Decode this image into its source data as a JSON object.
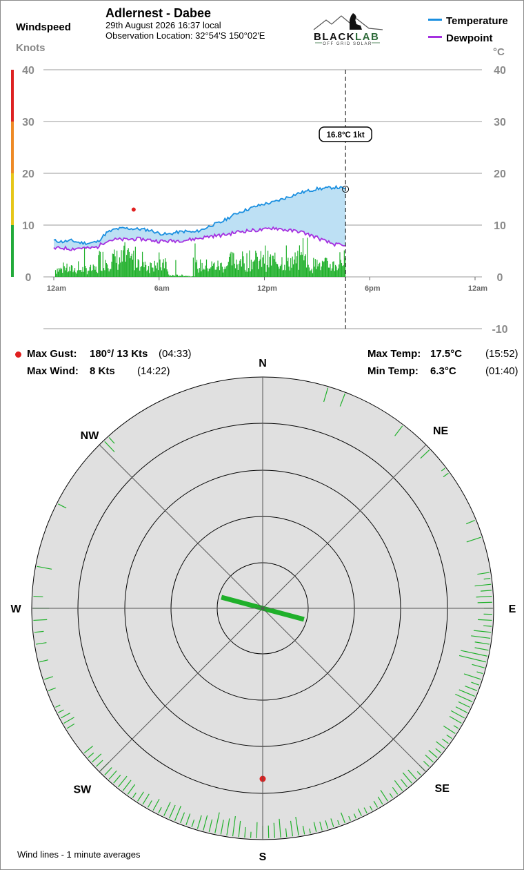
{
  "header": {
    "title": "Adlernest - Dabee",
    "datetime": "29th August 2026  16:37 local",
    "location": "Observation Location: 32°54'S 150°02'E",
    "windspeed_label": "Windspeed",
    "knots_label": "Knots",
    "celsius_label": "°C",
    "legend": {
      "temperature": "Temperature",
      "dewpoint": "Dewpoint"
    },
    "logo": {
      "brand_black": "BLACK",
      "brand_green": "LAB",
      "tagline": "OFF GRID SOLAR"
    }
  },
  "colors": {
    "temperature": "#1a8fe0",
    "temperature_fill": "#bde0f4",
    "dewpoint": "#a530e0",
    "wind": "#1fb02a",
    "gust_marker": "#e02020",
    "grid": "#9a9a9a",
    "compass_bg": "#e0e0e0",
    "scale_bands": [
      "#22aa3a",
      "#e6c619",
      "#ee8a25",
      "#dd2222"
    ]
  },
  "chart_data": {
    "type": "line",
    "x_tick_labels": [
      "12am",
      "6am",
      "12pm",
      "6pm",
      "12am"
    ],
    "x_tick_hours": [
      0,
      6,
      12,
      18,
      24
    ],
    "xlim_hours": [
      0,
      24
    ],
    "wind_axis": {
      "ticks": [
        0,
        10,
        20,
        30,
        40
      ],
      "ylim": [
        0,
        40
      ],
      "unit": "Knots"
    },
    "temp_axis": {
      "ticks": [
        -10,
        0,
        10,
        20,
        30,
        40
      ],
      "ylim": [
        -10,
        40
      ],
      "unit": "°C"
    },
    "current_time_hours": 16.62,
    "current_label": "16.8°C  1kt",
    "current_temp": 16.8,
    "current_wind": 1,
    "gust_point": {
      "hour": 4.55,
      "value": 13
    },
    "series": [
      {
        "name": "Temperature",
        "x": [
          0,
          0.5,
          1,
          1.5,
          2,
          2.5,
          3,
          3.5,
          4,
          4.5,
          5,
          5.5,
          6,
          6.5,
          7,
          7.5,
          8,
          8.5,
          9,
          9.5,
          10,
          10.5,
          11,
          11.5,
          12,
          12.5,
          13,
          13.5,
          14,
          14.5,
          15,
          15.5,
          16,
          16.5
        ],
        "values": [
          7.0,
          6.8,
          7.0,
          6.6,
          6.5,
          6.8,
          8.5,
          9.2,
          9.4,
          9.3,
          9.2,
          9.0,
          8.4,
          8.2,
          8.6,
          8.8,
          8.6,
          9.2,
          10.0,
          10.5,
          11.5,
          12.4,
          13.0,
          13.6,
          14.1,
          14.4,
          15.0,
          15.6,
          16.2,
          16.6,
          17.0,
          17.1,
          17.3,
          17.1
        ]
      },
      {
        "name": "Dewpoint",
        "x": [
          0,
          0.5,
          1,
          1.5,
          2,
          2.5,
          3,
          3.5,
          4,
          4.5,
          5,
          5.5,
          6,
          6.5,
          7,
          7.5,
          8,
          8.5,
          9,
          9.5,
          10,
          10.5,
          11,
          11.5,
          12,
          12.5,
          13,
          13.5,
          14,
          14.5,
          15,
          15.5,
          16,
          16.5
        ],
        "values": [
          5.5,
          5.6,
          5.4,
          5.6,
          5.5,
          5.8,
          7.0,
          7.2,
          7.2,
          7.3,
          7.3,
          7.1,
          6.9,
          6.9,
          7.0,
          7.1,
          7.3,
          7.6,
          7.9,
          8.0,
          8.3,
          8.7,
          8.9,
          9.0,
          9.1,
          9.5,
          9.2,
          8.9,
          8.8,
          8.2,
          7.6,
          6.8,
          6.3,
          6.0
        ]
      }
    ]
  },
  "stats": {
    "max_gust_label": "Max Gust:",
    "max_gust_value": "180°/ 13 Kts",
    "max_gust_time": "(04:33)",
    "max_wind_label": "Max Wind:",
    "max_wind_value": "8 Kts",
    "max_wind_time": "(14:22)",
    "max_temp_label": "Max Temp:",
    "max_temp_value": "17.5°C",
    "max_temp_time": "(15:52)",
    "min_temp_label": "Min Temp:",
    "min_temp_value": "6.3°C",
    "min_temp_time": "(01:40)"
  },
  "compass": {
    "directions": {
      "N": "N",
      "NE": "NE",
      "E": "E",
      "SE": "SE",
      "S": "S",
      "SW": "SW",
      "W": "W",
      "NW": "NW"
    },
    "gust_direction_deg": 180,
    "current_wind_direction_deg": 105,
    "footer": "Wind lines - 1 minute averages"
  }
}
